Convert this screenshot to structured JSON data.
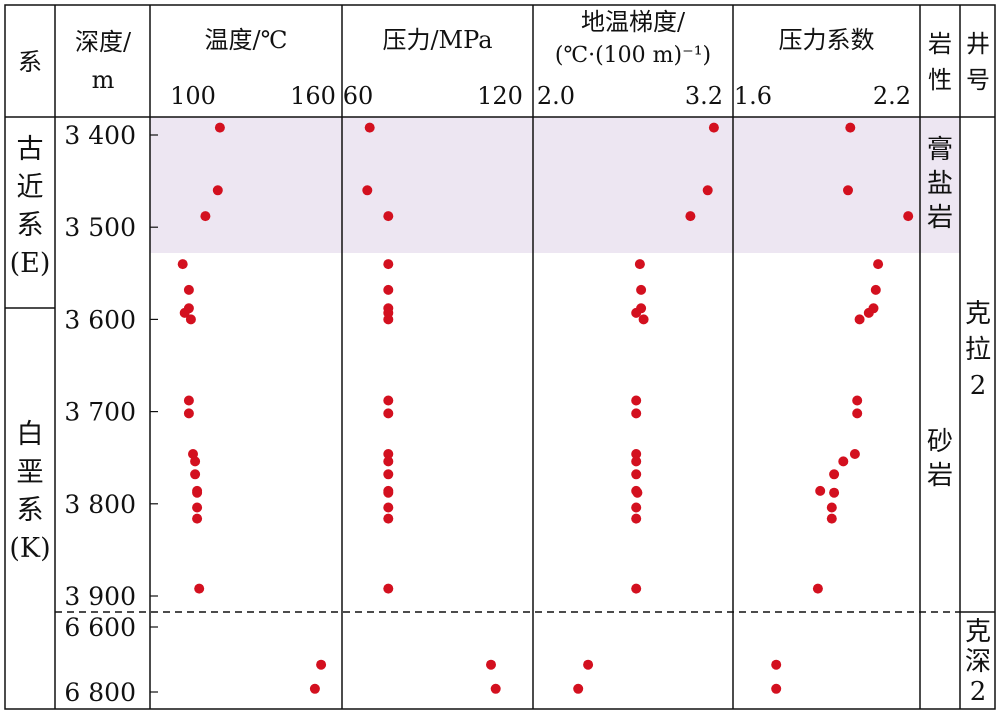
{
  "chart_data": {
    "type": "scatter",
    "columns": {
      "system": "系",
      "depth": "深度/ m",
      "lithology": "岩 性",
      "well": "井 号"
    },
    "panels": [
      {
        "key": "temperature",
        "header": "温度/℃",
        "ticks": [
          "100",
          "160"
        ],
        "xlim": [
          91,
          163
        ]
      },
      {
        "key": "pressure",
        "header": "压力/MPa",
        "ticks": [
          "60",
          "120"
        ],
        "xlim": [
          60,
          124
        ]
      },
      {
        "key": "gradient",
        "header": [
          "地温梯度/",
          "(℃·(100 m)⁻¹)"
        ],
        "ticks": [
          "2.0",
          "3.2"
        ],
        "xlim": [
          2.0,
          3.28
        ]
      },
      {
        "key": "pressure_coef",
        "header": "压力系数",
        "ticks": [
          "1.6",
          "2.2"
        ],
        "xlim": [
          1.6,
          2.28
        ]
      }
    ],
    "depth_ticks": [
      "3 400",
      "3 500",
      "3 600",
      "3 700",
      "3 800",
      "3 900",
      "6 600",
      "6 800"
    ],
    "systems": [
      {
        "chars": [
          "古",
          "近",
          "系",
          "(E)"
        ]
      },
      {
        "chars": [
          "白",
          "垩",
          "系",
          "(K)"
        ]
      }
    ],
    "lithology": [
      {
        "chars": [
          "膏",
          "盐",
          "岩"
        ]
      },
      {
        "chars": [
          "砂",
          "岩"
        ]
      }
    ],
    "wells": [
      {
        "chars": [
          "克",
          "拉",
          "2"
        ]
      },
      {
        "chars": [
          "克",
          "深",
          "2"
        ]
      }
    ],
    "highlight_color": "#ede6f2",
    "point_color": "#d3101f",
    "series": [
      {
        "well": "克拉2",
        "depth": [
          3392,
          3460,
          3488,
          3540,
          3568,
          3588,
          3593,
          3600,
          3688,
          3702,
          3746,
          3754,
          3768,
          3786,
          3788,
          3804,
          3816,
          3892
        ],
        "temperature": [
          113,
          112,
          106,
          95,
          98,
          98,
          96,
          99,
          98,
          98,
          100,
          101,
          101,
          102,
          102,
          102,
          102,
          103
        ],
        "pressure": [
          65,
          64,
          73,
          73,
          73,
          73,
          73,
          73,
          73,
          73,
          73,
          73,
          73,
          73,
          73,
          73,
          73,
          73
        ],
        "gradient": [
          3.28,
          3.23,
          3.09,
          2.68,
          2.69,
          2.69,
          2.65,
          2.71,
          2.65,
          2.65,
          2.65,
          2.65,
          2.65,
          2.65,
          2.66,
          2.65,
          2.65,
          2.65
        ],
        "pressure_coef": [
          2.02,
          2.01,
          2.27,
          2.14,
          2.13,
          2.12,
          2.1,
          2.06,
          2.05,
          2.05,
          2.04,
          1.99,
          1.95,
          1.89,
          1.95,
          1.94,
          1.94,
          1.88
        ]
      },
      {
        "well": "克深2",
        "depth": [
          6716,
          6790
        ],
        "temperature": [
          162,
          159
        ],
        "pressure": [
          117,
          119
        ],
        "gradient": [
          2.26,
          2.18
        ],
        "pressure_coef": [
          1.7,
          1.7
        ]
      }
    ]
  }
}
